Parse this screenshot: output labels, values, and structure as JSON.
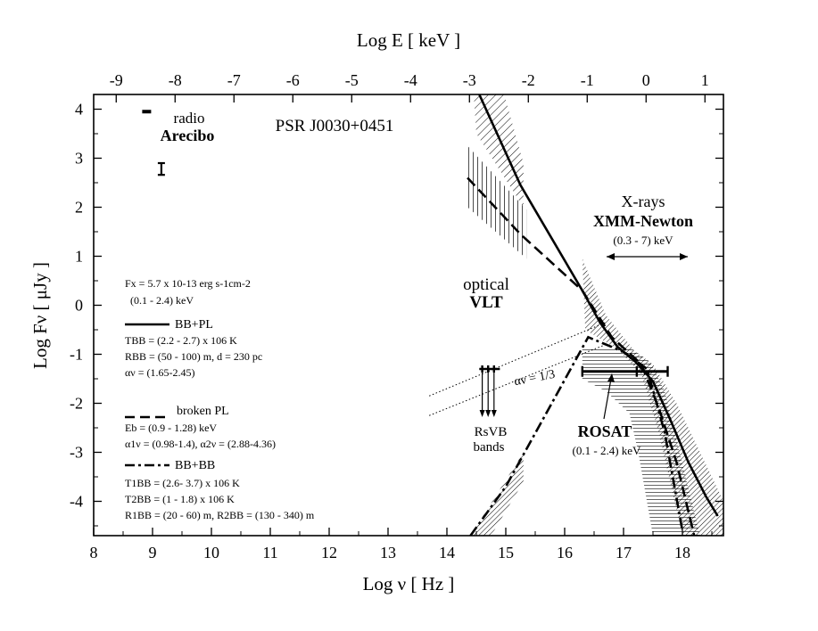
{
  "chart_data": {
    "type": "line",
    "title": "PSR J0030+0451",
    "xlabel": "Log ν [ Hz ]",
    "ylabel": "Log Fν [ μJy ]",
    "top_xlabel": "Log E [ keV ]",
    "xlim": [
      8,
      18.7
    ],
    "ylim": [
      -4.7,
      4.3
    ],
    "xticks": [
      8,
      9,
      10,
      11,
      12,
      13,
      14,
      15,
      16,
      17,
      18
    ],
    "yticks": [
      -4,
      -3,
      -2,
      -1,
      0,
      1,
      2,
      3,
      4
    ],
    "top_ticks": [
      -9,
      -8,
      -7,
      -6,
      -5,
      -4,
      -3,
      -2,
      -1,
      0,
      1
    ],
    "regions": {
      "radio": {
        "line1": "radio",
        "line2": "Arecibo"
      },
      "optical": {
        "line1": "optical",
        "line2": "VLT"
      },
      "xrays": {
        "line1": "X-rays",
        "line2": "XMM-Newton",
        "range": "(0.3 - 7) keV"
      },
      "rosat": {
        "line1": "ROSAT",
        "range": "(0.1 - 2.4) keV"
      },
      "bands": {
        "line1": "RsVB",
        "line2": "bands"
      },
      "slope": "αν = 1/3"
    },
    "radio_points": [
      {
        "x": 8.9,
        "y": 3.95,
        "note": "upper limit bar"
      },
      {
        "x": 9.15,
        "y": 2.78,
        "err": [
          2.66,
          2.9
        ]
      }
    ],
    "optical_upper_limits_x": [
      14.6,
      14.7,
      14.8
    ],
    "optical_upper_limits_y": -1.3,
    "series": [
      {
        "style": "solid",
        "x": [
          14.55,
          15.25,
          16.3,
          16.6,
          16.9,
          17.2,
          17.5,
          17.8,
          18.1,
          18.4,
          18.6
        ],
        "y": [
          4.3,
          2.45,
          0.3,
          -0.35,
          -0.85,
          -1.15,
          -1.55,
          -2.35,
          -3.2,
          -3.9,
          -4.3
        ]
      },
      {
        "style": "dashed",
        "x": [
          14.35,
          15.25,
          16.3,
          16.8,
          17.3,
          17.6,
          17.9,
          18.2
        ],
        "y": [
          2.6,
          1.45,
          0.3,
          -0.65,
          -1.2,
          -2.1,
          -3.2,
          -4.7
        ]
      },
      {
        "style": "dash-dot",
        "x": [
          14.4,
          15.0,
          16.4,
          17.0,
          17.4,
          17.7,
          18.0
        ],
        "y": [
          -4.7,
          -3.7,
          -0.65,
          -0.95,
          -1.3,
          -2.6,
          -4.6
        ]
      }
    ],
    "rosat_bar": {
      "x": [
        16.3,
        17.75
      ],
      "y": -1.35
    },
    "legend_title_fx": "Fx = 5.7 x 10-13 erg s-1cm-2",
    "legend_fx_range": "(0.1 - 2.4) keV",
    "legend": [
      {
        "style": "solid",
        "name": "BB+PL",
        "lines": [
          "TBB = (2.2 - 2.7) x 106 K",
          "RBB = (50 - 100) m, d = 230 pc",
          "αν = (1.65-2.45)"
        ]
      },
      {
        "style": "dashed",
        "name": "broken PL",
        "lines": [
          "Eb = (0.9 - 1.28) keV",
          "α1ν = (0.98-1.4),  α2ν = (2.88-4.36)"
        ]
      },
      {
        "style": "dash-dot",
        "name": "BB+BB",
        "lines": [
          "T1BB = (2.6- 3.7) x 106 K",
          "T2BB = (1 - 1.8) x 106 K",
          "R1BB = (20 - 60) m,  R2BB = (130 - 340) m"
        ]
      }
    ]
  }
}
